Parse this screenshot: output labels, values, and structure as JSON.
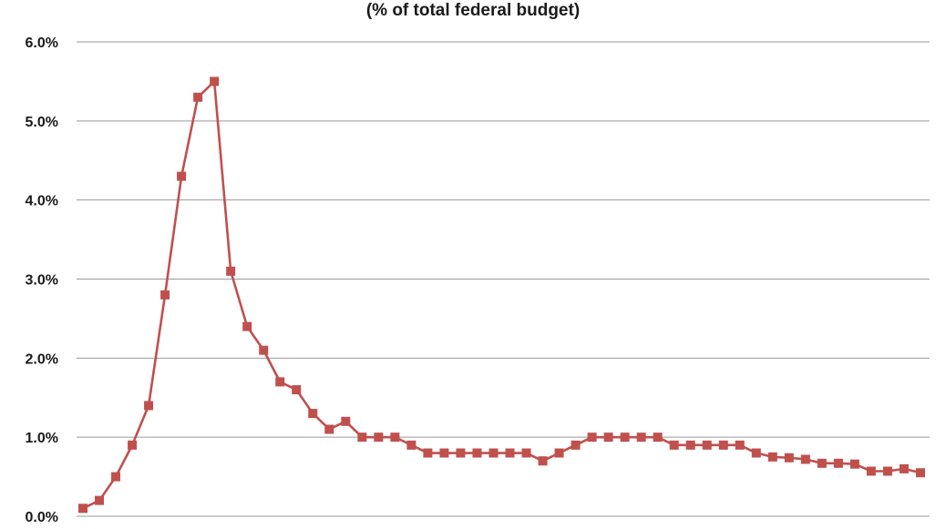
{
  "chart_data": {
    "type": "line",
    "title": "(% of total federal budget)",
    "xlabel": "",
    "ylabel": "",
    "ylim": [
      0,
      6
    ],
    "yticks": [
      0,
      1,
      2,
      3,
      4,
      5,
      6
    ],
    "ytick_labels": [
      "0.0%",
      "1.0%",
      "2.0%",
      "3.0%",
      "4.0%",
      "5.0%",
      "6.0%"
    ],
    "grid": true,
    "legend": "none",
    "series": [
      {
        "color": "#c0504d",
        "marker": "square",
        "values": [
          0.1,
          0.2,
          0.5,
          0.9,
          1.4,
          2.8,
          4.3,
          5.3,
          5.5,
          3.1,
          2.4,
          2.1,
          1.7,
          1.6,
          1.3,
          1.1,
          1.2,
          1.0,
          1.0,
          1.0,
          0.9,
          0.8,
          0.8,
          0.8,
          0.8,
          0.8,
          0.8,
          0.8,
          0.7,
          0.8,
          0.9,
          1.0,
          1.0,
          1.0,
          1.0,
          1.0,
          0.9,
          0.9,
          0.9,
          0.9,
          0.9,
          0.8,
          0.75,
          0.74,
          0.72,
          0.67,
          0.67,
          0.66,
          0.57,
          0.57,
          0.6,
          0.55
        ]
      }
    ]
  }
}
